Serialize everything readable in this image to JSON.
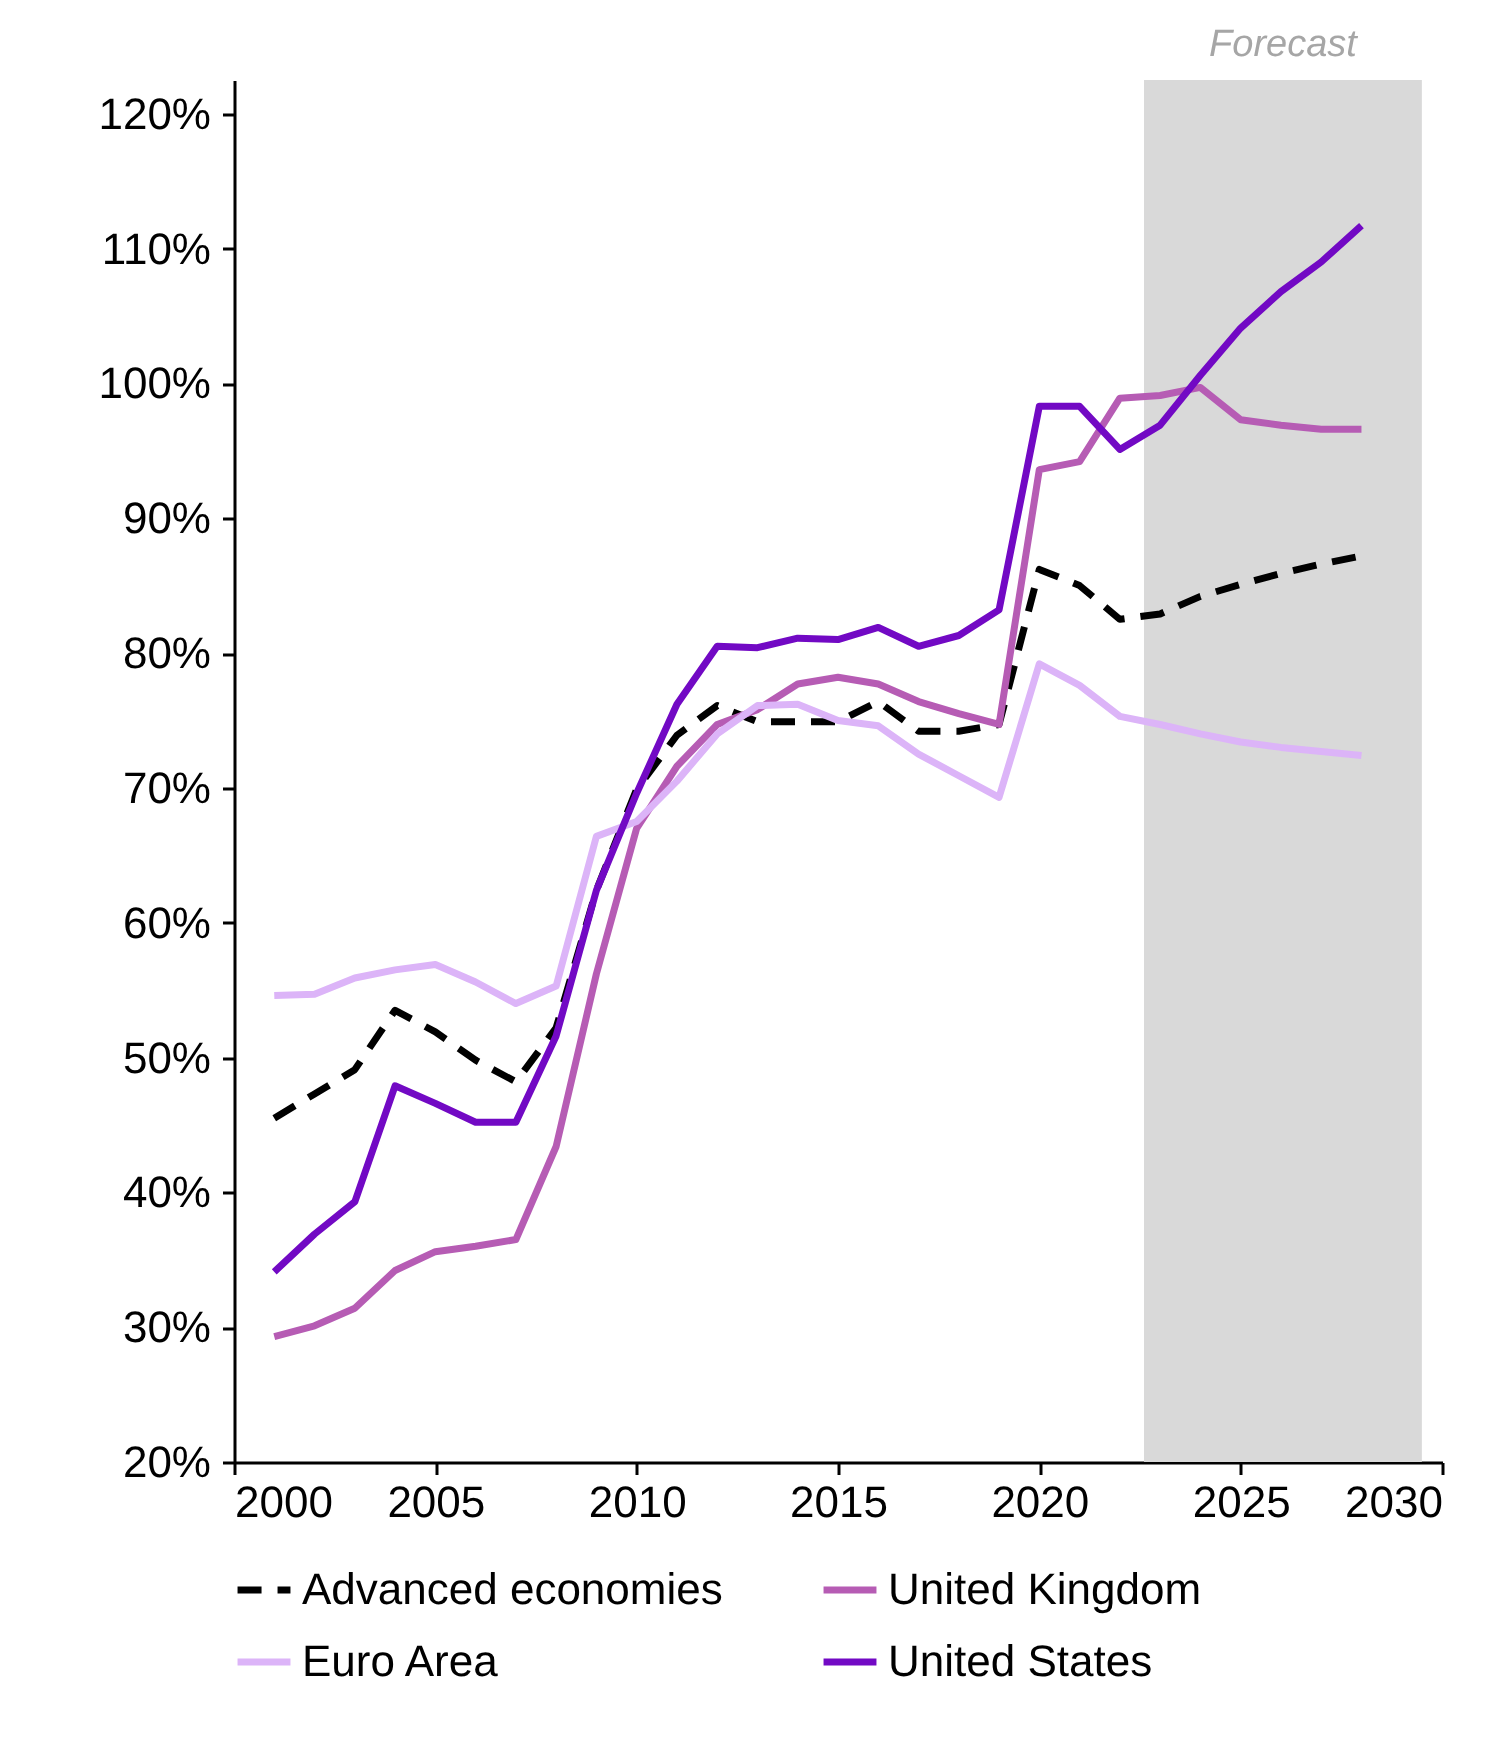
{
  "chart_data": {
    "type": "line",
    "x": [
      2001,
      2002,
      2003,
      2004,
      2005,
      2006,
      2007,
      2008,
      2009,
      2010,
      2011,
      2012,
      2013,
      2014,
      2015,
      2016,
      2017,
      2018,
      2019,
      2020,
      2021,
      2022,
      2023,
      2024,
      2025,
      2026,
      2027,
      2028
    ],
    "series": [
      {
        "name": "Advanced economies",
        "color": "#000000",
        "line_style": "dashed",
        "values": [
          45.5,
          47.3,
          49.1,
          53.5,
          51.9,
          49.8,
          48.2,
          52.2,
          62.4,
          69.9,
          73.9,
          76.1,
          74.9,
          74.9,
          74.9,
          76.4,
          74.2,
          74.2,
          74.7,
          86.2,
          85.0,
          82.5,
          82.9,
          84.2,
          85.1,
          85.9,
          86.6,
          87.2
        ]
      },
      {
        "name": "United Kingdom",
        "color": "#b65cb4",
        "line_style": "solid",
        "values": [
          29.3,
          30.1,
          31.4,
          34.2,
          35.6,
          36.0,
          36.5,
          43.4,
          56.2,
          67.0,
          71.6,
          74.7,
          75.8,
          77.7,
          78.2,
          77.7,
          76.4,
          75.5,
          74.7,
          93.6,
          94.2,
          98.9,
          99.1,
          99.7,
          97.3,
          96.9,
          96.6,
          96.6
        ]
      },
      {
        "name": "Euro Area",
        "color": "#dcb4f8",
        "line_style": "solid",
        "values": [
          54.6,
          54.7,
          55.9,
          56.5,
          56.9,
          55.6,
          54.0,
          55.3,
          66.4,
          67.5,
          70.5,
          74.0,
          76.1,
          76.2,
          75.0,
          74.6,
          72.5,
          70.9,
          69.3,
          79.2,
          77.6,
          75.3,
          74.7,
          74.0,
          73.4,
          73.0,
          72.7,
          72.4
        ]
      },
      {
        "name": "United States",
        "color": "#7209c4",
        "line_style": "solid",
        "values": [
          34.1,
          36.9,
          39.3,
          47.9,
          46.6,
          45.2,
          45.2,
          51.6,
          62.4,
          69.6,
          76.2,
          80.5,
          80.4,
          81.1,
          81.0,
          81.9,
          80.5,
          81.3,
          83.2,
          98.3,
          98.3,
          95.1,
          96.9,
          100.6,
          104.1,
          106.8,
          109.0,
          111.7
        ]
      }
    ],
    "xlim": [
      2000,
      2030
    ],
    "xticks": [
      2000,
      2005,
      2010,
      2015,
      2020,
      2025,
      2030
    ],
    "ylim": [
      20,
      122.5
    ],
    "yticks": [
      {
        "value": 20,
        "label": "20%"
      },
      {
        "value": 30,
        "label": "30%"
      },
      {
        "value": 40,
        "label": "40%"
      },
      {
        "value": 50,
        "label": "50%"
      },
      {
        "value": 60,
        "label": "60%"
      },
      {
        "value": 70,
        "label": "70%"
      },
      {
        "value": 80,
        "label": "80%"
      },
      {
        "value": 90,
        "label": "90%"
      },
      {
        "value": 100,
        "label": "100%"
      },
      {
        "value": 110,
        "label": "110%"
      },
      {
        "value": 120,
        "label": "120%"
      }
    ],
    "bands": [
      {
        "axis": "x",
        "from": 2022.6,
        "to": 2029.5,
        "label": "Forecast",
        "color": "#d9d9d9"
      }
    ],
    "grid": false,
    "legend": "bottom"
  }
}
